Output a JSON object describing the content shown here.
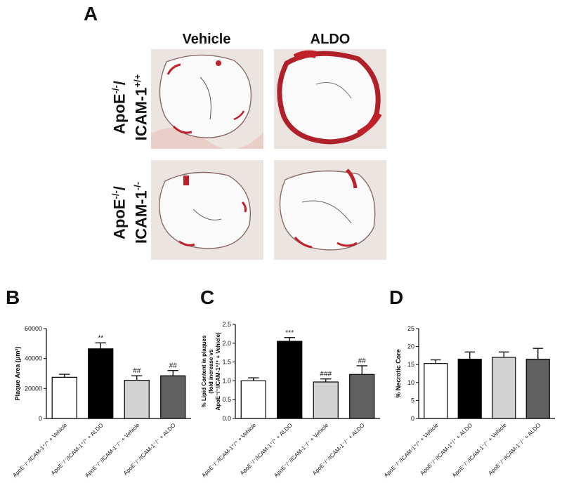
{
  "panel_a": {
    "letter": "A",
    "columns": [
      "Vehicle",
      "ALDO"
    ],
    "rows": [
      {
        "base": "ApoE",
        "sup1": "-/-",
        "mid": "/",
        "base2": "ICAM-1",
        "sup2": "+/+"
      },
      {
        "base": "ApoE",
        "sup1": "-/-",
        "mid": "/",
        "base2": "ICAM-1",
        "sup2": "-/-"
      }
    ],
    "micrograph_names": [
      "wt-vehicle-micrograph",
      "wt-aldo-micrograph",
      "ko-vehicle-micrograph",
      "ko-aldo-micrograph"
    ]
  },
  "colors": {
    "bar_fills": [
      "#ffffff",
      "#000000",
      "#d3d3d3",
      "#606060"
    ],
    "stain": "#c0202a",
    "tissue": "#e8e0dc"
  },
  "chart_data": [
    {
      "letter": "B",
      "type": "bar",
      "ylabel": "Plaque Area (μm²)",
      "ylim": [
        0,
        60000
      ],
      "yticks": [
        "0",
        "20000",
        "40000",
        "60000"
      ],
      "categories": [
        "ApoE⁻/⁻/ICAM-1⁺/⁺ + Vehicle",
        "ApoE⁻/⁻/ICAM-1⁺/⁺ + ALDO",
        "ApoE⁻/⁻/ICAM-1⁻/⁻ + Vehicle",
        "ApoE⁻/⁻/ICAM-1⁻/⁻ + ALDO"
      ],
      "values": [
        27500,
        46500,
        25500,
        28500
      ],
      "errors": [
        2000,
        4000,
        3000,
        3500
      ],
      "annotations": [
        "",
        "**",
        "##",
        "##"
      ]
    },
    {
      "letter": "C",
      "type": "bar",
      "ylabel": "% Lipid Content in plaques",
      "ylabel2": "(fold increase vs",
      "ylabel3": "ApoE⁻/⁻/ICAM-1⁺/⁺ + Vehicle)",
      "ylim": [
        0,
        2.5
      ],
      "yticks": [
        "0.0",
        "0.5",
        "1.0",
        "1.5",
        "2.0",
        "2.5"
      ],
      "categories": [
        "ApoE⁻/⁻/ICAM-1⁺/⁺ + Vehicle",
        "ApoE⁻/⁻/ICAM-1⁺/⁺ + ALDO",
        "ApoE⁻/⁻/ICAM-1⁻/⁻ + Vehicle",
        "ApoE⁻/⁻/ICAM-1⁻/⁻ + ALDO"
      ],
      "values": [
        1.0,
        2.05,
        0.97,
        1.17
      ],
      "errors": [
        0.08,
        0.1,
        0.08,
        0.23
      ],
      "annotations": [
        "",
        "***",
        "###",
        "##"
      ]
    },
    {
      "letter": "D",
      "type": "bar",
      "ylabel": "% Necrotic Core",
      "ylim": [
        0,
        25
      ],
      "yticks": [
        "0",
        "5",
        "10",
        "15",
        "20",
        "25"
      ],
      "categories": [
        "ApoE⁻/⁻/ICAM-1⁺/⁺ + Vehicle",
        "ApoE⁻/⁻/ICAM-1⁺/⁺ + ALDO",
        "ApoE⁻/⁻/ICAM-1⁻/⁻ + Vehicle",
        "ApoE⁻/⁻/ICAM-1⁻/⁻ + ALDO"
      ],
      "values": [
        15.3,
        16.5,
        17.0,
        16.5
      ],
      "errors": [
        1.0,
        2.0,
        1.5,
        3.0
      ],
      "annotations": [
        "",
        "",
        "",
        ""
      ]
    }
  ]
}
